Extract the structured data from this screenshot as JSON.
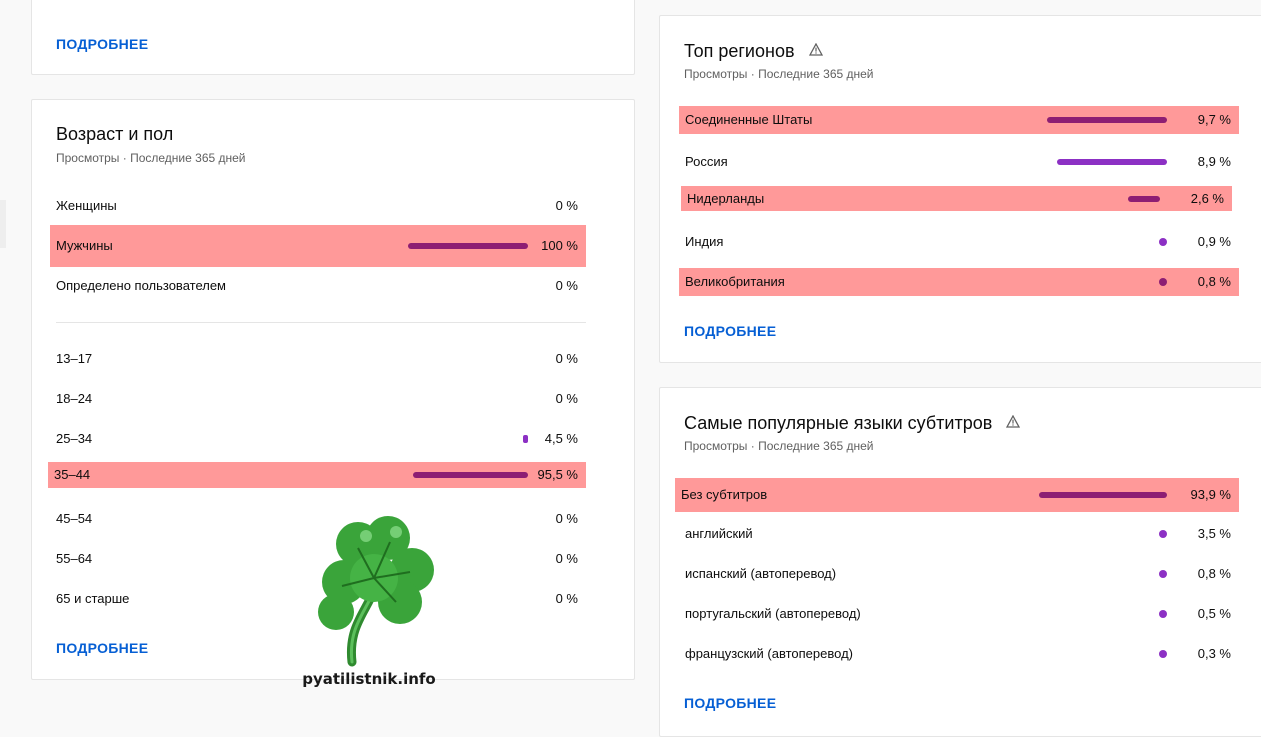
{
  "colors": {
    "highlight": "#ff9999",
    "bar_dark": "#8d1e73",
    "bar_light": "#8c30c4",
    "link": "#065fd4"
  },
  "top_left_card": {
    "more_label": "ПОДРОБНЕЕ"
  },
  "age_gender": {
    "title": "Возраст и пол",
    "subtitle": "Просмотры · Последние 365 дней",
    "gender": [
      {
        "label": "Женщины",
        "value": "0 %",
        "fraction": 0
      },
      {
        "label": "Мужчины",
        "value": "100 %",
        "fraction": 1.0
      },
      {
        "label": "Определено пользователем",
        "value": "0 %",
        "fraction": 0
      }
    ],
    "ages": [
      {
        "label": "13–17",
        "value": "0 %",
        "fraction": 0
      },
      {
        "label": "18–24",
        "value": "0 %",
        "fraction": 0
      },
      {
        "label": "25–34",
        "value": "4,5 %",
        "fraction": 0.045
      },
      {
        "label": "35–44",
        "value": "95,5 %",
        "fraction": 0.955
      },
      {
        "label": "45–54",
        "value": "0 %",
        "fraction": 0
      },
      {
        "label": "55–64",
        "value": "0 %",
        "fraction": 0
      },
      {
        "label": "65 и старше",
        "value": "0 %",
        "fraction": 0
      }
    ],
    "more_label": "ПОДРОБНЕЕ"
  },
  "regions": {
    "title": "Топ регионов",
    "subtitle": "Просмотры · Последние 365 дней",
    "rows": [
      {
        "label": "Соединенные Штаты",
        "value": "9,7 %",
        "fraction": 0.097
      },
      {
        "label": "Россия",
        "value": "8,9 %",
        "fraction": 0.089
      },
      {
        "label": "Нидерланды",
        "value": "2,6 %",
        "fraction": 0.026
      },
      {
        "label": "Индия",
        "value": "0,9 %",
        "fraction": 0.009
      },
      {
        "label": "Великобритания",
        "value": "0,8 %",
        "fraction": 0.008
      }
    ],
    "more_label": "ПОДРОБНЕЕ"
  },
  "subtitles": {
    "title": "Самые популярные языки субтитров",
    "subtitle": "Просмотры · Последние 365 дней",
    "rows": [
      {
        "label": "Без субтитров",
        "value": "93,9 %",
        "fraction": 0.939
      },
      {
        "label": "английский",
        "value": "3,5 %",
        "fraction": 0.035
      },
      {
        "label": "испанский (автоперевод)",
        "value": "0,8 %",
        "fraction": 0.008
      },
      {
        "label": "португальский (автоперевод)",
        "value": "0,5 %",
        "fraction": 0.005
      },
      {
        "label": "французский (автоперевод)",
        "value": "0,3 %",
        "fraction": 0.003
      }
    ],
    "more_label": "ПОДРОБНЕЕ"
  },
  "watermark": {
    "text": "pyatilistnik.info"
  }
}
